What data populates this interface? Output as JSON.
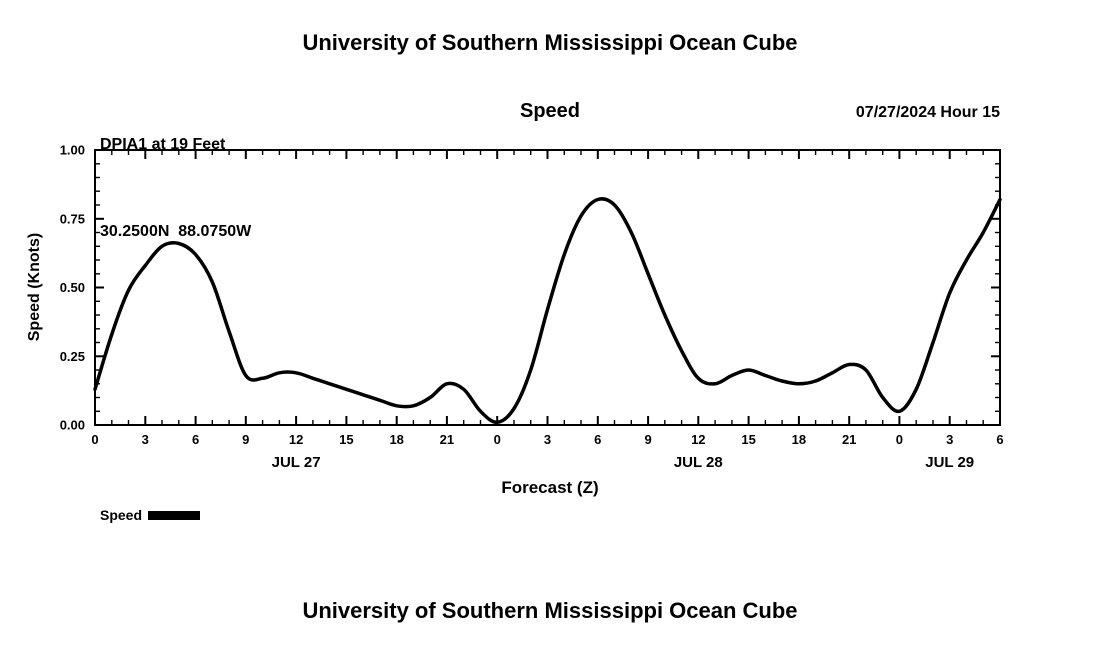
{
  "page": {
    "top_title": "University of Southern Mississippi Ocean Cube",
    "bottom_title": "University of Southern Mississippi Ocean Cube"
  },
  "header": {
    "station_line1": "DPIA1 at 19 Feet",
    "station_line2": "30.2500N  88.0750W",
    "panel_title": "Speed",
    "run_info": "07/27/2024 Hour 15"
  },
  "legend": {
    "label": "Speed",
    "swatch_color": "#000000"
  },
  "chart_data": {
    "type": "line",
    "title": "Speed",
    "xlabel": "Forecast (Z)",
    "ylabel": "Speed (Knots)",
    "ylim": [
      0.0,
      1.0
    ],
    "ytick_values": [
      0.0,
      0.25,
      0.5,
      0.75,
      1.0
    ],
    "ytick_labels": [
      "0.00",
      "0.25",
      "0.50",
      "0.75",
      "1.00"
    ],
    "y_minor_step": 0.05,
    "x_hour_range": [
      0,
      54
    ],
    "x_major_step": 3,
    "x_tick_labels": [
      "0",
      "3",
      "6",
      "9",
      "12",
      "15",
      "18",
      "21",
      "0",
      "3",
      "6",
      "9",
      "12",
      "15",
      "18",
      "21",
      "0",
      "3",
      "6"
    ],
    "day_labels": [
      {
        "label": "JUL 27",
        "hour": 12
      },
      {
        "label": "JUL 28",
        "hour": 36
      },
      {
        "label": "JUL 29",
        "hour": 51
      }
    ],
    "grid": false,
    "legend_position": "bottom-left",
    "series": [
      {
        "name": "Speed",
        "color": "#000000",
        "x_hours": [
          0,
          1,
          2,
          3,
          4,
          5,
          6,
          7,
          8,
          9,
          10,
          11,
          12,
          13,
          14,
          15,
          16,
          17,
          18,
          19,
          20,
          21,
          22,
          23,
          24,
          25,
          26,
          27,
          28,
          29,
          30,
          31,
          32,
          33,
          34,
          35,
          36,
          37,
          38,
          39,
          40,
          41,
          42,
          43,
          44,
          45,
          46,
          47,
          48,
          49,
          50,
          51,
          52,
          53,
          54
        ],
        "values": [
          0.13,
          0.33,
          0.49,
          0.58,
          0.65,
          0.66,
          0.62,
          0.52,
          0.34,
          0.18,
          0.17,
          0.19,
          0.19,
          0.17,
          0.15,
          0.13,
          0.11,
          0.09,
          0.07,
          0.07,
          0.1,
          0.15,
          0.13,
          0.05,
          0.01,
          0.06,
          0.2,
          0.42,
          0.62,
          0.76,
          0.82,
          0.8,
          0.7,
          0.55,
          0.4,
          0.27,
          0.17,
          0.15,
          0.18,
          0.2,
          0.18,
          0.16,
          0.15,
          0.16,
          0.19,
          0.22,
          0.2,
          0.1,
          0.05,
          0.13,
          0.3,
          0.48,
          0.6,
          0.7,
          0.82
        ]
      }
    ]
  }
}
